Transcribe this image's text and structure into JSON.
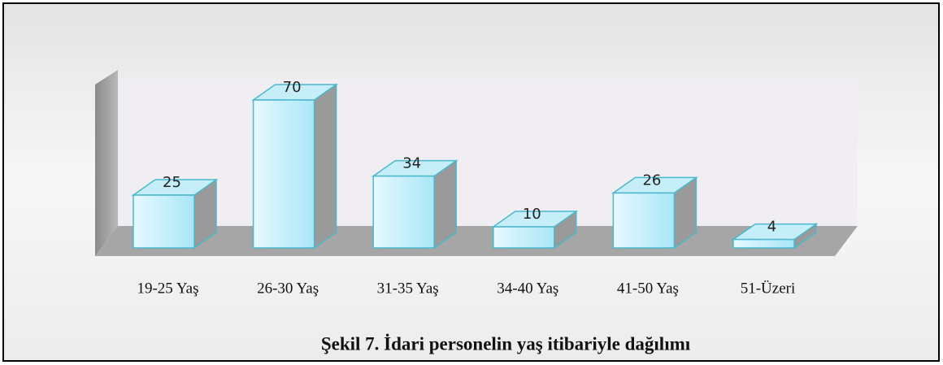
{
  "chart_data": {
    "type": "bar3d",
    "title": "Şekil 7. İdari personelin yaş itibariyle dağılımı",
    "categories": [
      "19-25 Yaş",
      "26-30 Yaş",
      "31-35 Yaş",
      "34-40 Yaş",
      "41-50 Yaş",
      "51-Üzeri"
    ],
    "values": [
      25,
      70,
      34,
      10,
      26,
      4
    ],
    "color": "#bfeefa"
  }
}
